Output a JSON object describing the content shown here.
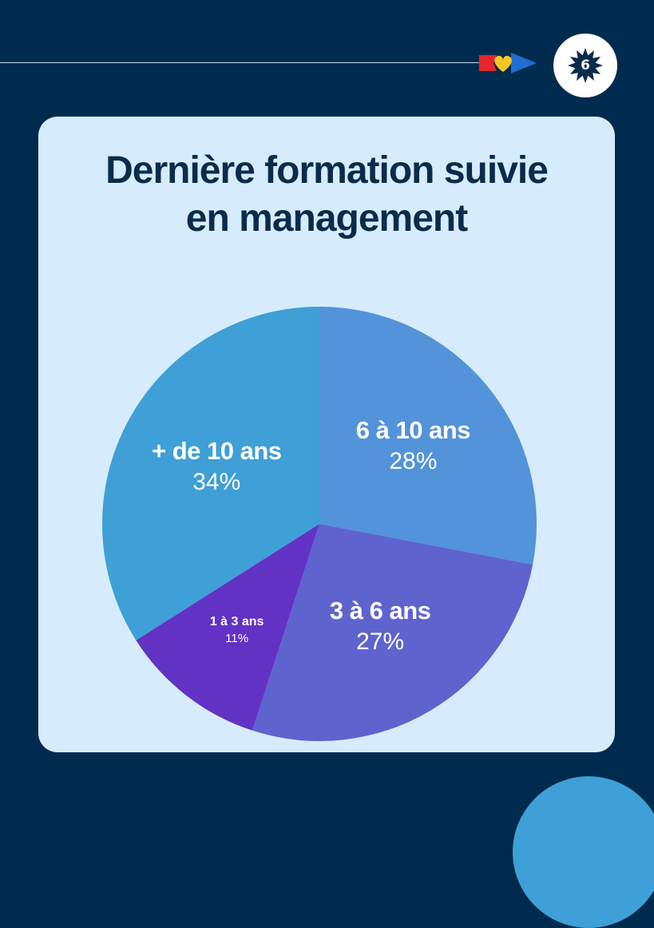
{
  "header": {
    "page_number": "6",
    "logo_icon": "flag-heart-arrow-icon",
    "badge_icon": "star-badge-icon"
  },
  "chart_data": {
    "type": "pie",
    "title": "Dernière formation suivie en management",
    "title_lines": [
      "Dernière formation suivie",
      "en management"
    ],
    "start_angle_deg": 0,
    "direction": "clockwise",
    "slices": [
      {
        "label": "6 à 10 ans",
        "value": 28,
        "value_label": "28%",
        "color": "#5293da"
      },
      {
        "label": "3 à 6 ans",
        "value": 27,
        "value_label": "27%",
        "color": "#5e63ce"
      },
      {
        "label": "1 à 3 ans",
        "value": 11,
        "value_label": "11%",
        "color": "#6232c4"
      },
      {
        "label": "+ de 10 ans",
        "value": 34,
        "value_label": "34%",
        "color": "#3ea0d6"
      }
    ]
  },
  "colors": {
    "background": "#002b4f",
    "card": "#d6ecfc",
    "title": "#0a2c4c",
    "accent": "#3ea0d6"
  }
}
